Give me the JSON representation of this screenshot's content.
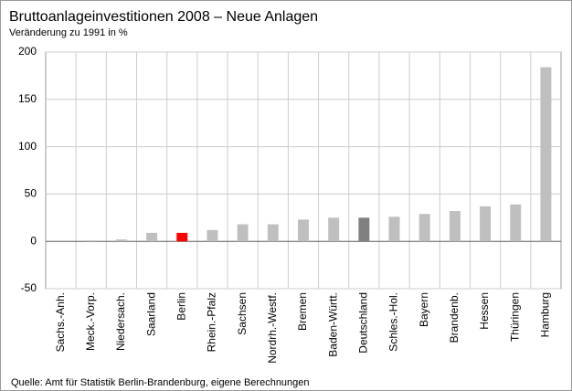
{
  "chart_data": {
    "type": "bar",
    "title": "Bruttoanlageinvestitionen  2008 – Neue Anlagen",
    "subtitle": "Veränderung  zu 1991 in %",
    "source": "Quelle:  Amt für Statistik Berlin-Brandenburg,  eigene Berechnungen",
    "categories": [
      "Sachs.-Anh.",
      "Meck.-Vorp.",
      "Niedersach.",
      "Saarland",
      "Berlin",
      "Rhein.-Pfalz",
      "Sachsen",
      "Nordrh.-Westf.",
      "Bremen",
      "Baden-Württ.",
      "Deutschland",
      "Schles.-Hol.",
      "Bayern",
      "Brandenb.",
      "Hessen",
      "Thüringen",
      "Hamburg"
    ],
    "values": [
      0,
      1,
      2,
      9,
      9,
      12,
      18,
      18,
      23,
      25,
      25,
      26,
      29,
      32,
      37,
      39,
      184
    ],
    "colors": [
      "#bfbfbf",
      "#bfbfbf",
      "#bfbfbf",
      "#bfbfbf",
      "#ff0000",
      "#bfbfbf",
      "#bfbfbf",
      "#bfbfbf",
      "#bfbfbf",
      "#bfbfbf",
      "#808080",
      "#bfbfbf",
      "#bfbfbf",
      "#bfbfbf",
      "#bfbfbf",
      "#bfbfbf",
      "#bfbfbf"
    ],
    "ylim": [
      -50,
      200
    ],
    "yticks": [
      -50,
      0,
      50,
      100,
      150,
      200
    ],
    "grid": true
  }
}
